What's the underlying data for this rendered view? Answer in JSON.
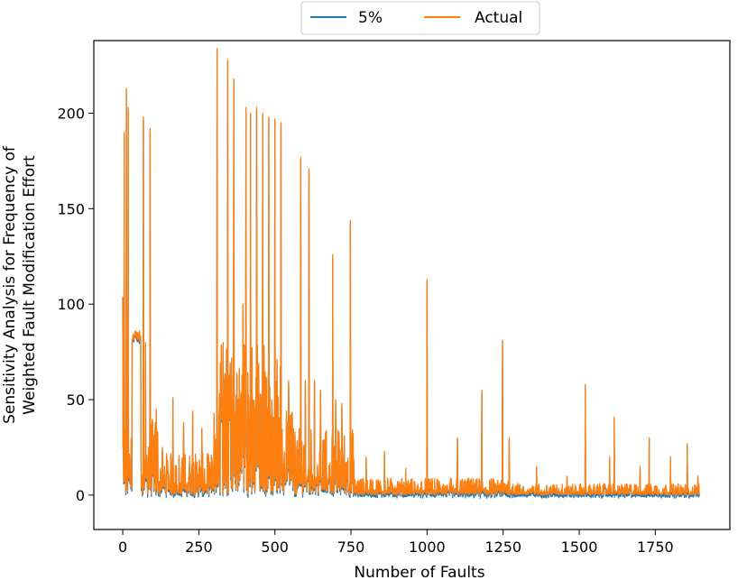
{
  "chart_data": {
    "type": "line",
    "title": "",
    "xlabel": "Number of Faults",
    "ylabel_lines": [
      "Sensitivity Analysis for Frequency of",
      "Weighted Fault Modification Effort"
    ],
    "xlim": [
      -95,
      1995
    ],
    "ylim": [
      -18,
      238
    ],
    "x_ticks": [
      0,
      250,
      500,
      750,
      1000,
      1250,
      1500,
      1750
    ],
    "y_ticks": [
      0,
      50,
      100,
      150,
      200
    ],
    "x_tick_labels": [
      "0",
      "250",
      "500",
      "750",
      "1000",
      "1250",
      "1500",
      "1750"
    ],
    "y_tick_labels": [
      "0",
      "50",
      "100",
      "150",
      "200"
    ],
    "legend_position": "top-center",
    "series": [
      {
        "name": "5%",
        "color": "#1f77b4",
        "offset": -1.2
      },
      {
        "name": "Actual",
        "color": "#ff7f0e",
        "offset": 0
      }
    ],
    "x_max": 1895,
    "peaks": [
      {
        "x": 0,
        "y": 104
      },
      {
        "x": 5,
        "y": 190
      },
      {
        "x": 12,
        "y": 213
      },
      {
        "x": 18,
        "y": 203
      },
      {
        "x": 28,
        "y": 30
      },
      {
        "x": 40,
        "y": 85
      },
      {
        "x": 55,
        "y": 86
      },
      {
        "x": 68,
        "y": 198
      },
      {
        "x": 75,
        "y": 80
      },
      {
        "x": 90,
        "y": 192
      },
      {
        "x": 110,
        "y": 45
      },
      {
        "x": 130,
        "y": 25
      },
      {
        "x": 165,
        "y": 51
      },
      {
        "x": 200,
        "y": 38
      },
      {
        "x": 230,
        "y": 44
      },
      {
        "x": 260,
        "y": 35
      },
      {
        "x": 310,
        "y": 234
      },
      {
        "x": 330,
        "y": 80
      },
      {
        "x": 345,
        "y": 228
      },
      {
        "x": 365,
        "y": 218
      },
      {
        "x": 395,
        "y": 100
      },
      {
        "x": 405,
        "y": 203
      },
      {
        "x": 420,
        "y": 200
      },
      {
        "x": 440,
        "y": 203
      },
      {
        "x": 460,
        "y": 200
      },
      {
        "x": 480,
        "y": 198
      },
      {
        "x": 500,
        "y": 197
      },
      {
        "x": 520,
        "y": 195
      },
      {
        "x": 545,
        "y": 60
      },
      {
        "x": 585,
        "y": 177
      },
      {
        "x": 600,
        "y": 60
      },
      {
        "x": 612,
        "y": 171
      },
      {
        "x": 630,
        "y": 60
      },
      {
        "x": 650,
        "y": 55
      },
      {
        "x": 690,
        "y": 126
      },
      {
        "x": 700,
        "y": 50
      },
      {
        "x": 720,
        "y": 48
      },
      {
        "x": 748,
        "y": 144
      },
      {
        "x": 800,
        "y": 20
      },
      {
        "x": 860,
        "y": 23
      },
      {
        "x": 930,
        "y": 14
      },
      {
        "x": 1000,
        "y": 113
      },
      {
        "x": 1100,
        "y": 30
      },
      {
        "x": 1180,
        "y": 55
      },
      {
        "x": 1248,
        "y": 81
      },
      {
        "x": 1270,
        "y": 30
      },
      {
        "x": 1360,
        "y": 15
      },
      {
        "x": 1460,
        "y": 10
      },
      {
        "x": 1520,
        "y": 58
      },
      {
        "x": 1600,
        "y": 20
      },
      {
        "x": 1615,
        "y": 41
      },
      {
        "x": 1700,
        "y": 15
      },
      {
        "x": 1730,
        "y": 30
      },
      {
        "x": 1800,
        "y": 20
      },
      {
        "x": 1855,
        "y": 27
      },
      {
        "x": 1890,
        "y": 10
      }
    ]
  }
}
